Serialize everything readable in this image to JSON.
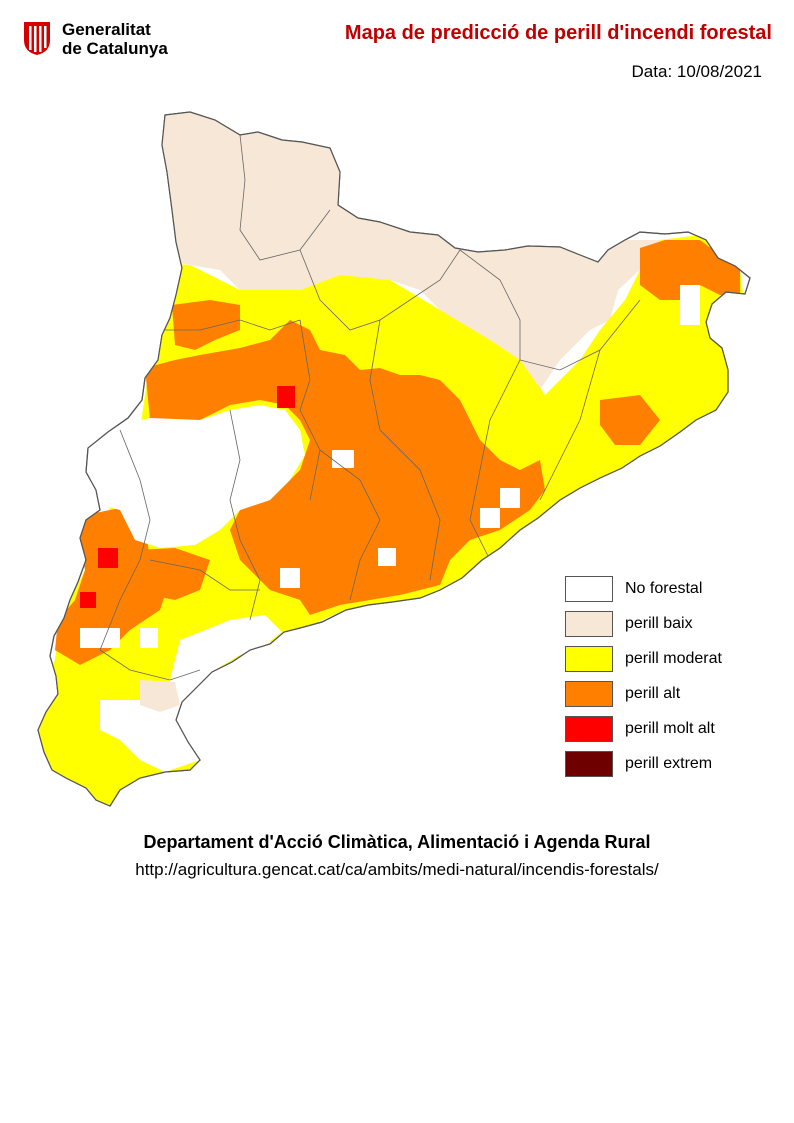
{
  "header": {
    "logo_line1": "Generalitat",
    "logo_line2": "de Catalunya",
    "title": "Mapa de predicció de perill d'incendi forestal",
    "date_label": "Data:",
    "date_value": "10/08/2021"
  },
  "colors": {
    "title": "#c00000",
    "no_forestal": "#ffffff",
    "perill_baix": "#f7e7d6",
    "perill_moderat": "#ffff00",
    "perill_alt": "#ff8000",
    "perill_molt_alt": "#ff0000",
    "perill_extrem": "#6e0000",
    "boundary": "#555555",
    "logo_red": "#d40000"
  },
  "legend": [
    {
      "label": "No forestal",
      "color": "#ffffff"
    },
    {
      "label": "perill baix",
      "color": "#f7e7d6"
    },
    {
      "label": "perill moderat",
      "color": "#ffff00"
    },
    {
      "label": "perill alt",
      "color": "#ff8000"
    },
    {
      "label": "perill molt alt",
      "color": "#ff0000"
    },
    {
      "label": "perill extrem",
      "color": "#6e0000"
    }
  ],
  "footer": {
    "department": "Departament d'Acció Climàtica, Alimentació i Agenda Rural",
    "url": "http://agricultura.gencat.cat/ca/ambits/medi-natural/incendis-forestals/"
  }
}
